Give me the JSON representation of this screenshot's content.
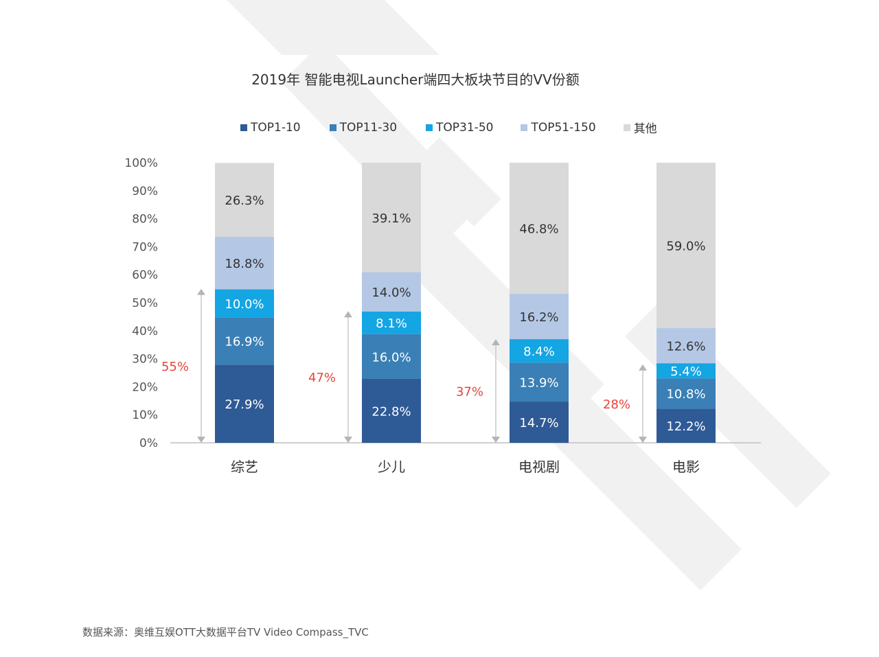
{
  "source_text": "数据来源：奥维互娱OTT大数据平台TV Video Compass_TVC",
  "chart_data": {
    "type": "bar",
    "stacked": true,
    "title": "2019年 智能电视Launcher端四大板块节目的VV份额",
    "categories": [
      "综艺",
      "少儿",
      "电视剧",
      "电影"
    ],
    "series": [
      {
        "name": "TOP1-10",
        "color": "#2E5A96",
        "values": [
          27.9,
          22.8,
          14.7,
          12.2
        ],
        "labels": [
          "27.9%",
          "22.8%",
          "14.7%",
          "12.2%"
        ]
      },
      {
        "name": "TOP11-30",
        "color": "#3A7FB5",
        "values": [
          16.9,
          16.0,
          13.9,
          10.8
        ],
        "labels": [
          "16.9%",
          "16.0%",
          "13.9%",
          "10.8%"
        ]
      },
      {
        "name": "TOP31-50",
        "color": "#14A5E3",
        "values": [
          10.0,
          8.1,
          8.4,
          5.4
        ],
        "labels": [
          "10.0%",
          "8.1%",
          "8.4%",
          "5.4%"
        ]
      },
      {
        "name": "TOP51-150",
        "color": "#B4C8E6",
        "values": [
          18.8,
          14.0,
          16.2,
          12.6
        ],
        "labels": [
          "18.8%",
          "14.0%",
          "16.2%",
          "12.6%"
        ]
      },
      {
        "name": "其他",
        "color": "#D9D9D9",
        "values": [
          26.3,
          39.1,
          46.8,
          59.0
        ],
        "labels": [
          "26.3%",
          "39.1%",
          "46.8%",
          "59.0%"
        ]
      }
    ],
    "y_ticks": [
      "0%",
      "10%",
      "20%",
      "30%",
      "40%",
      "50%",
      "60%",
      "70%",
      "80%",
      "90%",
      "100%"
    ],
    "ylim": [
      0,
      100
    ],
    "annotations": [
      {
        "category": "综艺",
        "value": 55,
        "label": "55%"
      },
      {
        "category": "少儿",
        "value": 47,
        "label": "47%"
      },
      {
        "category": "电视剧",
        "value": 37,
        "label": "37%"
      },
      {
        "category": "电影",
        "value": 28,
        "label": "28%"
      }
    ],
    "annotation_color": "#E8433A",
    "legend_position": "top"
  }
}
